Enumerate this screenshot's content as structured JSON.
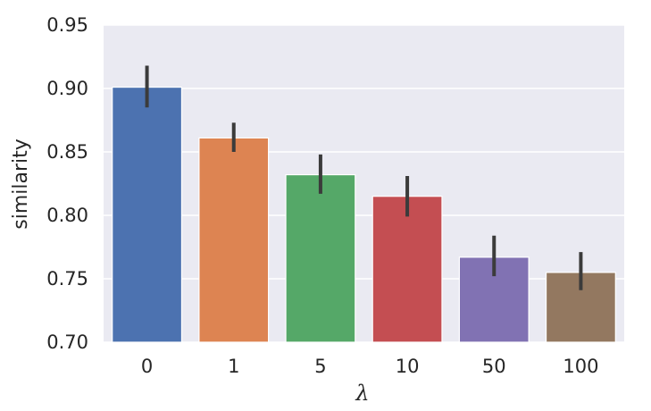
{
  "chart_data": {
    "type": "bar",
    "categories": [
      "0",
      "1",
      "5",
      "10",
      "50",
      "100"
    ],
    "values": [
      0.901,
      0.861,
      0.832,
      0.815,
      0.767,
      0.755
    ],
    "ci_low": [
      0.885,
      0.85,
      0.817,
      0.799,
      0.752,
      0.741
    ],
    "ci_high": [
      0.918,
      0.873,
      0.848,
      0.831,
      0.784,
      0.771
    ],
    "colors": [
      "#4c72b0",
      "#dd8452",
      "#55a868",
      "#c44e52",
      "#8172b3",
      "#937860"
    ],
    "xlabel": "λ",
    "ylabel": "similarity",
    "ylim": [
      0.7,
      0.95
    ],
    "yticks": [
      "0.70",
      "0.75",
      "0.80",
      "0.85",
      "0.90",
      "0.95"
    ],
    "grid": true,
    "background": "#eaeaf2"
  }
}
